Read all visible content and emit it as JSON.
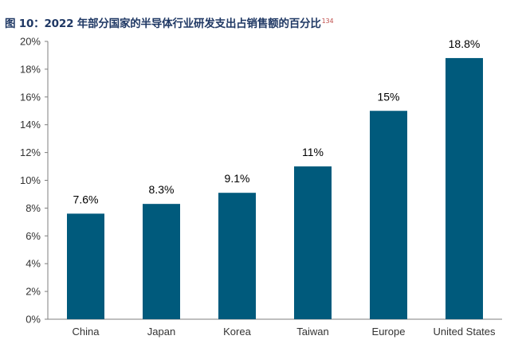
{
  "header": {
    "title": "图 10：2022 年部分国家的半导体行业研发支出占销售额的百分比",
    "footnote": "134"
  },
  "colors": {
    "bar": "#005a7c",
    "axis": "#7f7f7f",
    "title": "#1f3864"
  },
  "chart_data": {
    "type": "bar",
    "title": "图 10：2022 年部分国家的半导体行业研发支出占销售额的百分比",
    "xlabel": "",
    "ylabel": "",
    "categories": [
      "China",
      "Japan",
      "Korea",
      "Taiwan",
      "Europe",
      "United States"
    ],
    "values": [
      7.6,
      8.3,
      9.1,
      11,
      15,
      18.8
    ],
    "data_labels": [
      "7.6%",
      "8.3%",
      "9.1%",
      "11%",
      "15%",
      "18.8%"
    ],
    "ylim": [
      0,
      20
    ],
    "yticks": [
      0,
      2,
      4,
      6,
      8,
      10,
      12,
      14,
      16,
      18,
      20
    ],
    "ytick_labels": [
      "0%",
      "2%",
      "4%",
      "6%",
      "8%",
      "10%",
      "12%",
      "14%",
      "16%",
      "18%",
      "20%"
    ],
    "grid": false,
    "legend": "none"
  }
}
